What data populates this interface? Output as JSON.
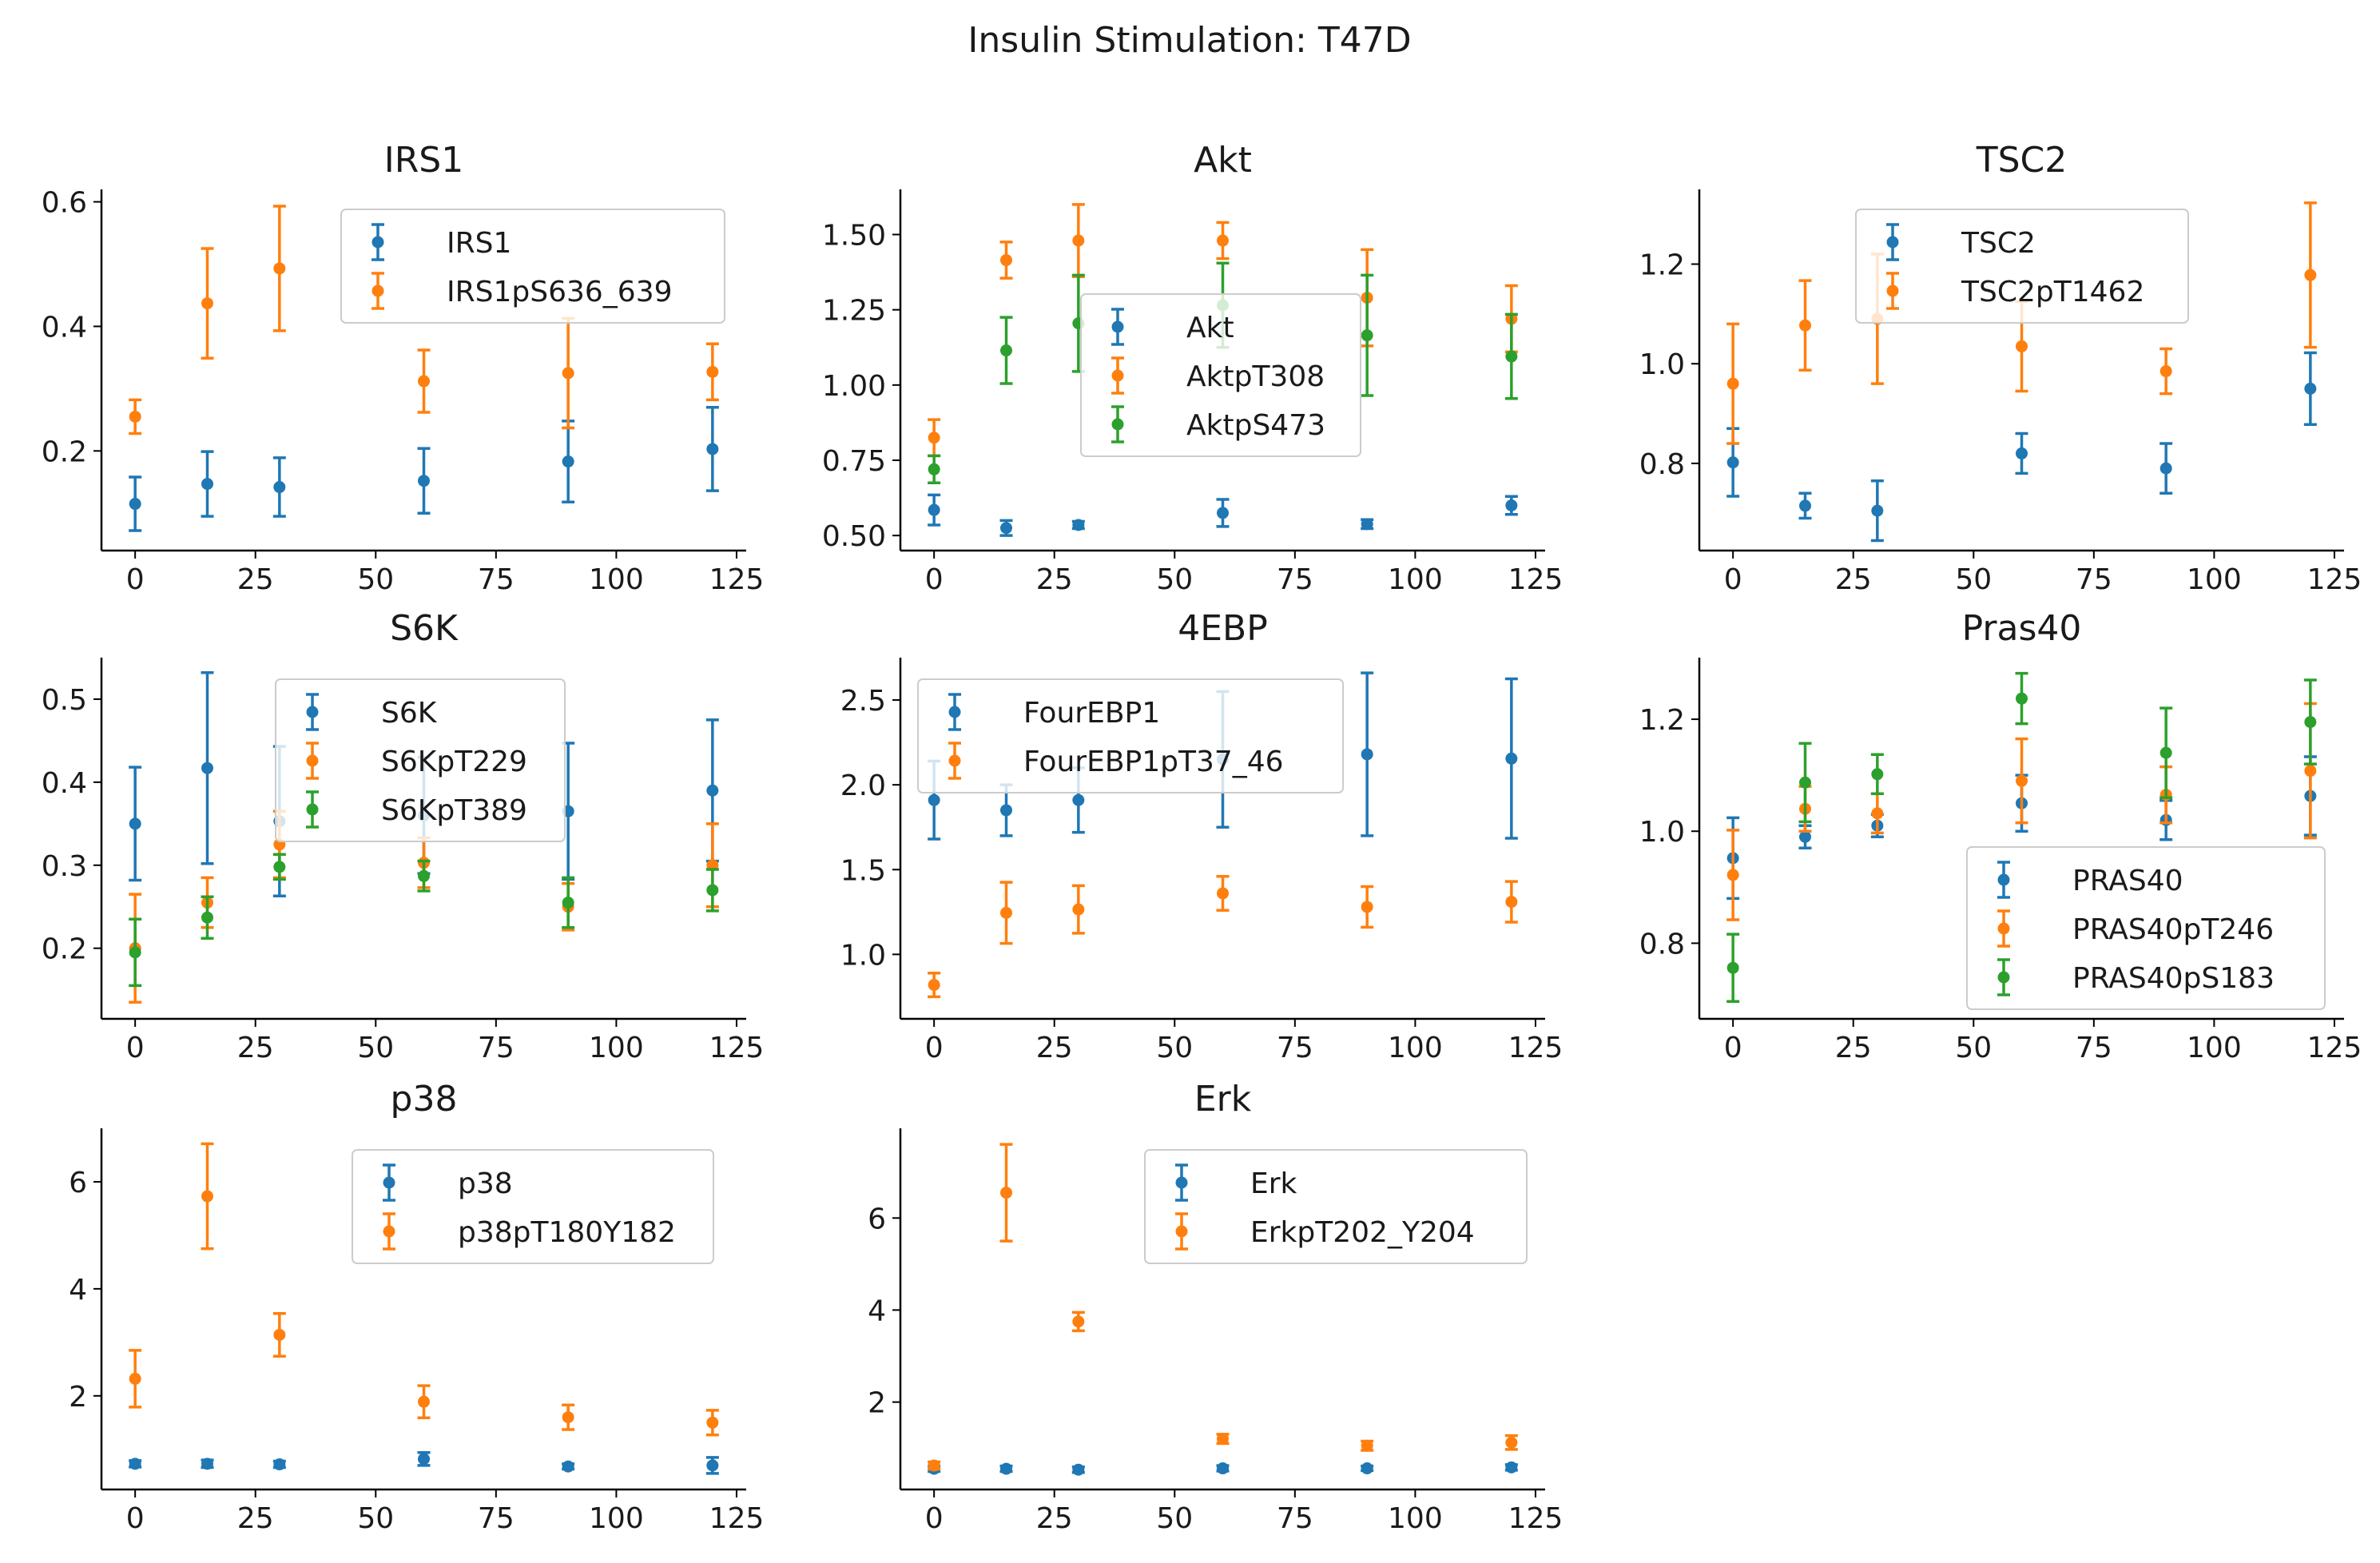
{
  "title": "Insulin Stimulation: T47D",
  "colors": {
    "blue": "#1f77b4",
    "orange": "#ff7f0e",
    "green": "#2ca02c"
  },
  "chart_data": [
    {
      "type": "scatter",
      "title": "IRS1",
      "xlabel": "",
      "ylabel": "",
      "xlim": [
        -7,
        127
      ],
      "ylim": [
        0.04,
        0.62
      ],
      "xticks": [
        0,
        25,
        50,
        75,
        100,
        125
      ],
      "yticks": [
        0.2,
        0.4,
        0.6
      ],
      "yticklabels": [
        "0.2",
        "0.4",
        "0.6"
      ],
      "legend": "top-center",
      "series": [
        {
          "name": "IRS1",
          "color": "blue",
          "x": [
            0,
            15,
            30,
            60,
            90,
            120
          ],
          "y": [
            0.115,
            0.147,
            0.142,
            0.152,
            0.183,
            0.203
          ],
          "err": [
            0.043,
            0.052,
            0.047,
            0.052,
            0.065,
            0.067
          ]
        },
        {
          "name": "IRS1pS636_639",
          "color": "orange",
          "x": [
            0,
            15,
            30,
            60,
            90,
            120
          ],
          "y": [
            0.255,
            0.437,
            0.493,
            0.312,
            0.325,
            0.327
          ],
          "err": [
            0.027,
            0.088,
            0.1,
            0.05,
            0.088,
            0.045
          ]
        }
      ]
    },
    {
      "type": "scatter",
      "title": "Akt",
      "xlabel": "",
      "ylabel": "",
      "xlim": [
        -7,
        127
      ],
      "ylim": [
        0.45,
        1.65
      ],
      "xticks": [
        0,
        25,
        50,
        75,
        100,
        125
      ],
      "yticks": [
        0.5,
        0.75,
        1.0,
        1.25,
        1.5
      ],
      "yticklabels": [
        "0.50",
        "0.75",
        "1.00",
        "1.25",
        "1.50"
      ],
      "legend": "center",
      "series": [
        {
          "name": "Akt",
          "color": "blue",
          "x": [
            0,
            15,
            30,
            60,
            90,
            120
          ],
          "y": [
            0.585,
            0.525,
            0.535,
            0.575,
            0.538,
            0.6
          ],
          "err": [
            0.05,
            0.025,
            0.012,
            0.045,
            0.015,
            0.03
          ]
        },
        {
          "name": "AktpT308",
          "color": "orange",
          "x": [
            0,
            15,
            30,
            60,
            90,
            120
          ],
          "y": [
            0.825,
            1.415,
            1.48,
            1.48,
            1.29,
            1.22
          ],
          "err": [
            0.06,
            0.06,
            0.12,
            0.06,
            0.16,
            0.11
          ]
        },
        {
          "name": "AktpS473",
          "color": "green",
          "x": [
            0,
            15,
            30,
            60,
            90,
            120
          ],
          "y": [
            0.72,
            1.115,
            1.205,
            1.265,
            1.165,
            1.095
          ],
          "err": [
            0.045,
            0.11,
            0.16,
            0.14,
            0.2,
            0.14
          ]
        }
      ]
    },
    {
      "type": "scatter",
      "title": "TSC2",
      "xlabel": "",
      "ylabel": "",
      "xlim": [
        -7,
        127
      ],
      "ylim": [
        0.625,
        1.35
      ],
      "xticks": [
        0,
        25,
        50,
        75,
        100,
        125
      ],
      "yticks": [
        0.8,
        1.0,
        1.2
      ],
      "yticklabels": [
        "0.8",
        "1.0",
        "1.2"
      ],
      "legend": "top-center",
      "series": [
        {
          "name": "TSC2",
          "color": "blue",
          "x": [
            0,
            15,
            30,
            60,
            90,
            120
          ],
          "y": [
            0.802,
            0.715,
            0.705,
            0.82,
            0.79,
            0.95
          ],
          "err": [
            0.068,
            0.025,
            0.06,
            0.04,
            0.05,
            0.072
          ]
        },
        {
          "name": "TSC2pT1462",
          "color": "orange",
          "x": [
            0,
            15,
            30,
            60,
            90,
            120
          ],
          "y": [
            0.96,
            1.077,
            1.09,
            1.035,
            0.985,
            1.178
          ],
          "err": [
            0.12,
            0.09,
            0.13,
            0.09,
            0.045,
            0.145
          ]
        }
      ]
    },
    {
      "type": "scatter",
      "title": "S6K",
      "xlabel": "",
      "ylabel": "",
      "xlim": [
        -7,
        127
      ],
      "ylim": [
        0.115,
        0.55
      ],
      "xticks": [
        0,
        25,
        50,
        75,
        100,
        125
      ],
      "yticks": [
        0.2,
        0.3,
        0.4,
        0.5
      ],
      "yticklabels": [
        "0.2",
        "0.3",
        "0.4",
        "0.5"
      ],
      "legend": "top-center",
      "series": [
        {
          "name": "S6K",
          "color": "blue",
          "x": [
            0,
            15,
            30,
            60,
            90,
            120
          ],
          "y": [
            0.35,
            0.417,
            0.353,
            0.36,
            0.365,
            0.39
          ],
          "err": [
            0.068,
            0.115,
            0.09,
            0.07,
            0.082,
            0.085
          ]
        },
        {
          "name": "S6KpT229",
          "color": "orange",
          "x": [
            0,
            15,
            30,
            60,
            90,
            120
          ],
          "y": [
            0.2,
            0.255,
            0.325,
            0.303,
            0.25,
            0.3
          ],
          "err": [
            0.065,
            0.03,
            0.04,
            0.03,
            0.028,
            0.05
          ]
        },
        {
          "name": "S6KpT389",
          "color": "green",
          "x": [
            0,
            15,
            30,
            60,
            90,
            120
          ],
          "y": [
            0.195,
            0.237,
            0.298,
            0.287,
            0.255,
            0.27
          ],
          "err": [
            0.04,
            0.025,
            0.015,
            0.018,
            0.03,
            0.025
          ]
        }
      ]
    },
    {
      "type": "scatter",
      "title": "4EBP",
      "xlabel": "",
      "ylabel": "",
      "xlim": [
        -7,
        127
      ],
      "ylim": [
        0.62,
        2.75
      ],
      "xticks": [
        0,
        25,
        50,
        75,
        100,
        125
      ],
      "yticks": [
        1.0,
        1.5,
        2.0,
        2.5
      ],
      "yticklabels": [
        "1.0",
        "1.5",
        "2.0",
        "2.5"
      ],
      "legend": "top-left",
      "series": [
        {
          "name": "FourEBP1",
          "color": "blue",
          "x": [
            0,
            15,
            30,
            60,
            90,
            120
          ],
          "y": [
            1.91,
            1.85,
            1.91,
            2.15,
            2.18,
            2.155
          ],
          "err": [
            0.23,
            0.15,
            0.19,
            0.4,
            0.48,
            0.47
          ]
        },
        {
          "name": "FourEBP1pT37_46",
          "color": "orange",
          "x": [
            0,
            15,
            30,
            60,
            90,
            120
          ],
          "y": [
            0.82,
            1.245,
            1.265,
            1.36,
            1.28,
            1.31
          ],
          "err": [
            0.07,
            0.18,
            0.14,
            0.1,
            0.12,
            0.12
          ]
        }
      ]
    },
    {
      "type": "scatter",
      "title": "Pras40",
      "xlabel": "",
      "ylabel": "",
      "xlim": [
        -7,
        127
      ],
      "ylim": [
        0.665,
        1.31
      ],
      "xticks": [
        0,
        25,
        50,
        75,
        100,
        125
      ],
      "yticks": [
        0.8,
        1.0,
        1.2
      ],
      "yticklabels": [
        "0.8",
        "1.0",
        "1.2"
      ],
      "legend": "bottom-right",
      "series": [
        {
          "name": "PRAS40",
          "color": "blue",
          "x": [
            0,
            15,
            30,
            60,
            90,
            120
          ],
          "y": [
            0.952,
            0.99,
            1.01,
            1.05,
            1.02,
            1.063
          ],
          "err": [
            0.072,
            0.02,
            0.02,
            0.05,
            0.035,
            0.07
          ]
        },
        {
          "name": "PRAS40pT246",
          "color": "orange",
          "x": [
            0,
            15,
            30,
            60,
            90,
            120
          ],
          "y": [
            0.922,
            1.04,
            1.032,
            1.09,
            1.065,
            1.108
          ],
          "err": [
            0.08,
            0.04,
            0.035,
            0.075,
            0.05,
            0.12
          ]
        },
        {
          "name": "PRAS40pS183",
          "color": "green",
          "x": [
            0,
            15,
            30,
            60,
            90,
            120
          ],
          "y": [
            0.756,
            1.087,
            1.102,
            1.237,
            1.14,
            1.195
          ],
          "err": [
            0.06,
            0.07,
            0.035,
            0.045,
            0.08,
            0.075
          ]
        }
      ]
    },
    {
      "type": "scatter",
      "title": "p38",
      "xlabel": "",
      "ylabel": "",
      "xlim": [
        -7,
        127
      ],
      "ylim": [
        0.25,
        7.0
      ],
      "xticks": [
        0,
        25,
        50,
        75,
        100,
        125
      ],
      "yticks": [
        2,
        4,
        6
      ],
      "yticklabels": [
        "2",
        "4",
        "6"
      ],
      "legend": "top-right",
      "series": [
        {
          "name": "p38",
          "color": "blue",
          "x": [
            0,
            15,
            30,
            60,
            90,
            120
          ],
          "y": [
            0.73,
            0.73,
            0.72,
            0.82,
            0.68,
            0.7
          ],
          "err": [
            0.06,
            0.07,
            0.06,
            0.12,
            0.05,
            0.15
          ]
        },
        {
          "name": "p38pT180Y182",
          "color": "orange",
          "x": [
            0,
            15,
            30,
            60,
            90,
            120
          ],
          "y": [
            2.32,
            5.73,
            3.14,
            1.89,
            1.6,
            1.5
          ],
          "err": [
            0.53,
            0.98,
            0.4,
            0.3,
            0.23,
            0.23
          ]
        }
      ]
    },
    {
      "type": "scatter",
      "title": "Erk",
      "xlabel": "",
      "ylabel": "",
      "xlim": [
        -7,
        127
      ],
      "ylim": [
        0.1,
        7.95
      ],
      "xticks": [
        0,
        25,
        50,
        75,
        100,
        125
      ],
      "yticks": [
        2,
        4,
        6
      ],
      "yticklabels": [
        "2",
        "4",
        "6"
      ],
      "legend": "top-right",
      "series": [
        {
          "name": "Erk",
          "color": "blue",
          "x": [
            0,
            15,
            30,
            60,
            90,
            120
          ],
          "y": [
            0.55,
            0.55,
            0.53,
            0.56,
            0.56,
            0.58
          ],
          "err": [
            0.06,
            0.06,
            0.06,
            0.06,
            0.05,
            0.06
          ]
        },
        {
          "name": "ErkpT202_Y204",
          "color": "orange",
          "x": [
            0,
            15,
            30,
            60,
            90,
            120
          ],
          "y": [
            0.62,
            6.55,
            3.75,
            1.2,
            1.05,
            1.12
          ],
          "err": [
            0.08,
            1.05,
            0.2,
            0.1,
            0.1,
            0.15
          ]
        }
      ]
    }
  ]
}
